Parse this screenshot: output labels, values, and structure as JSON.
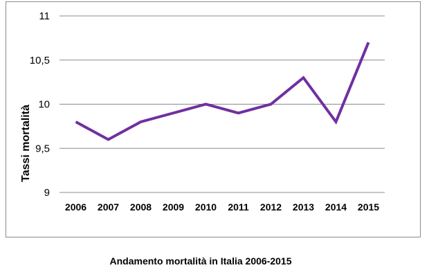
{
  "chart_data": {
    "type": "line",
    "title": "",
    "xlabel": "",
    "ylabel": "Tassi mortalità",
    "categories": [
      "2006",
      "2007",
      "2008",
      "2009",
      "2010",
      "2011",
      "2012",
      "2013",
      "2014",
      "2015"
    ],
    "series": [
      {
        "color": "#7030a0",
        "values": [
          9.8,
          9.6,
          9.8,
          9.9,
          10.0,
          9.9,
          10.0,
          10.3,
          9.8,
          10.7
        ]
      }
    ],
    "ylim": [
      9,
      11
    ],
    "yticks": [
      9,
      9.5,
      10,
      10.5,
      11
    ],
    "ytick_labels": [
      "9",
      "9,5",
      "10",
      "10,5",
      "11"
    ],
    "grid": true,
    "legend": "none"
  },
  "caption": "Andamento mortalità in Italia 2006-2015",
  "colors": {
    "line": "#7030a0",
    "grid": "#8c8c8c",
    "frame": "#8a8a8a"
  }
}
